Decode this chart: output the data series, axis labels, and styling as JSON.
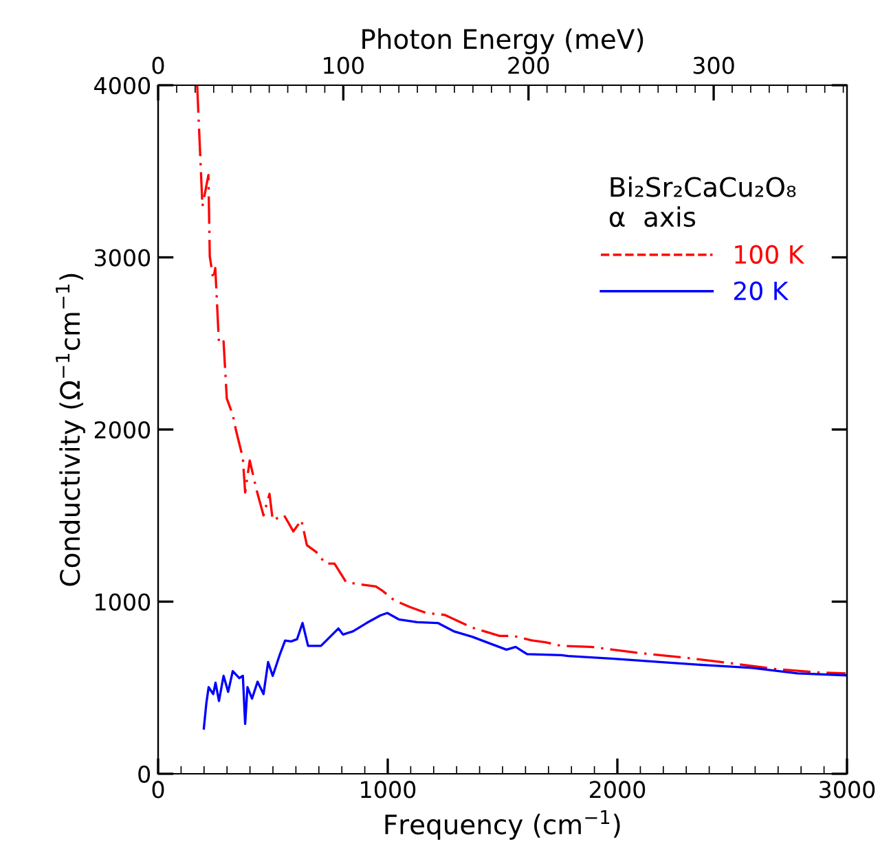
{
  "chart_data": {
    "type": "line",
    "xlabel": "Frequency (cm$^{−1}$)",
    "ylabel": "Conductivity (Ω$^{−1}$cm$^{−1}$)",
    "x2label": "Photon Energy (meV)",
    "legend_title": "Bi₂Sr₂CaCu₂O₈\nα  axis",
    "legend": "top right",
    "grid": false,
    "marker": "none",
    "xlim": [
      0,
      3000
    ],
    "xticks": [
      0,
      1000,
      2000,
      3000
    ],
    "ylim": [
      0,
      4000
    ],
    "yticks": [
      0,
      1000,
      2000,
      3000,
      4000
    ],
    "x2lim": [
      0,
      372
    ],
    "x2ticks": [
      0,
      100,
      200,
      300
    ],
    "series": [
      {
        "name": "100 K",
        "color": "#ff0000",
        "line_style": "dashdot",
        "x": [
          170,
          193,
          219,
          225,
          240,
          249,
          265,
          285,
          299,
          325,
          339,
          369,
          379,
          399,
          429,
          459,
          485,
          499,
          549,
          589,
          624,
          648,
          689,
          729,
          768,
          818,
          868,
          948,
          978,
          1028,
          1098,
          1168,
          1248,
          1368,
          1487,
          1547,
          1627,
          1687,
          1757,
          1886,
          2086,
          2286,
          2485,
          2685,
          2884,
          2994
        ],
        "values": [
          4000,
          3297,
          3478,
          3005,
          2874,
          2938,
          2499,
          2512,
          2180,
          2086,
          1996,
          1834,
          1634,
          1820,
          1647,
          1501,
          1626,
          1474,
          1501,
          1408,
          1474,
          1328,
          1288,
          1221,
          1221,
          1115,
          1102,
          1088,
          1062,
          1008,
          968,
          934,
          923,
          849,
          801,
          801,
          775,
          764,
          743,
          737,
          703,
          676,
          644,
          609,
          588,
          583
        ]
      },
      {
        "name": "20 K",
        "color": "#0000ff",
        "line_style": "solid",
        "x": [
          199,
          210,
          220,
          240,
          250,
          265,
          285,
          305,
          325,
          353,
          369,
          379,
          389,
          409,
          433,
          459,
          479,
          499,
          529,
          553,
          579,
          605,
          629,
          653,
          709,
          749,
          785,
          805,
          849,
          908,
          968,
          998,
          1048,
          1128,
          1218,
          1287,
          1368,
          1447,
          1517,
          1557,
          1607,
          1757,
          1786,
          1986,
          2186,
          2385,
          2585,
          2784,
          2994
        ],
        "values": [
          263,
          410,
          503,
          463,
          529,
          423,
          569,
          476,
          596,
          556,
          569,
          290,
          503,
          437,
          535,
          463,
          649,
          569,
          689,
          774,
          769,
          782,
          876,
          743,
          743,
          796,
          844,
          809,
          828,
          876,
          920,
          934,
          897,
          881,
          876,
          828,
          796,
          756,
          721,
          737,
          695,
          689,
          684,
          668,
          649,
          631,
          615,
          583,
          572
        ]
      }
    ]
  }
}
